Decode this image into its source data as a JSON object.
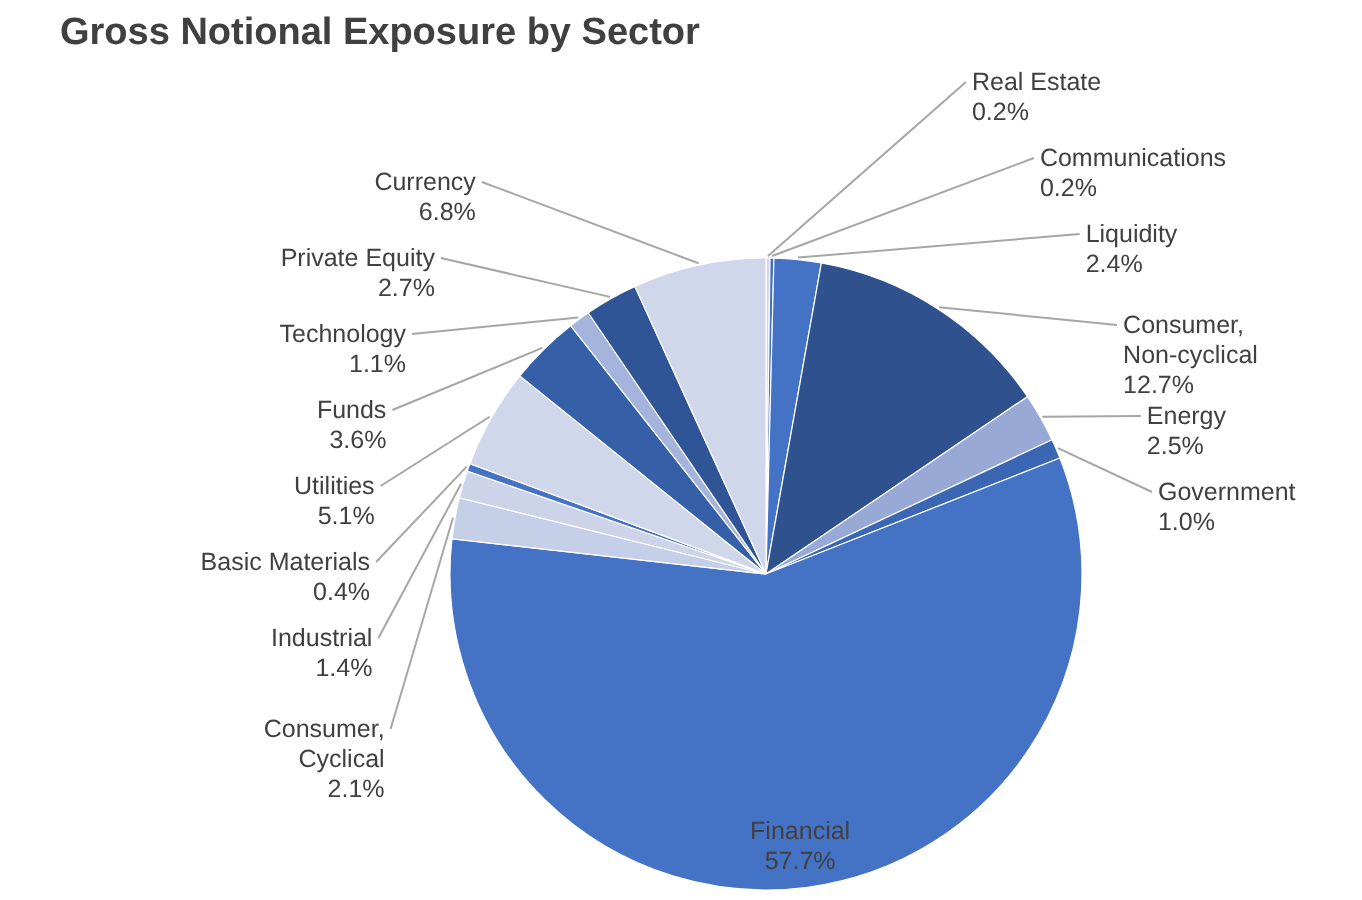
{
  "chart_data": {
    "type": "pie",
    "title": "Gross Notional Exposure by Sector",
    "categories": [
      "Real Estate",
      "Communications",
      "Liquidity",
      "Consumer, Non-cyclical",
      "Energy",
      "Government",
      "Financial",
      "Consumer, Cyclical",
      "Industrial",
      "Basic Materials",
      "Utilities",
      "Funds",
      "Technology",
      "Private Equity",
      "Currency"
    ],
    "values": [
      0.2,
      0.2,
      2.4,
      12.7,
      2.5,
      1.0,
      57.7,
      2.1,
      1.4,
      0.4,
      5.1,
      3.6,
      1.1,
      2.7,
      6.8
    ],
    "value_labels": [
      "0.2%",
      "0.2%",
      "2.4%",
      "12.7%",
      "2.5%",
      "1.0%",
      "57.7%",
      "2.1%",
      "1.4%",
      "0.4%",
      "5.1%",
      "3.6%",
      "1.1%",
      "2.7%",
      "6.8%"
    ],
    "colors": [
      "#d0d7ea",
      "#4472c4",
      "#4472c4",
      "#2f528f",
      "#98a9d6",
      "#3a66b4",
      "#4472c4",
      "#c5cfe8",
      "#cdd4ea",
      "#4472c4",
      "#d0d7ea",
      "#3560a8",
      "#a5b4dc",
      "#2f5597",
      "#d0d7ea"
    ]
  }
}
